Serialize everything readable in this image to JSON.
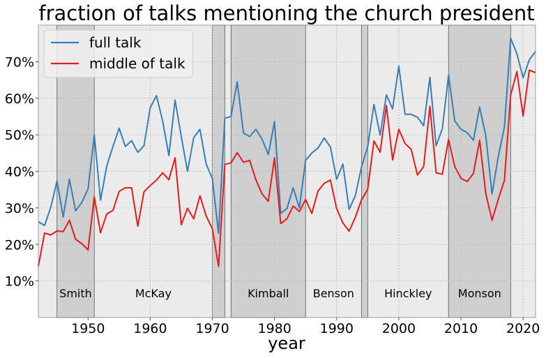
{
  "chart_data": {
    "type": "line",
    "title": "fraction of talks mentioning the church president",
    "xlabel": "year",
    "ylabel": "",
    "xlim": [
      1942,
      2022
    ],
    "ylim": [
      0,
      0.8
    ],
    "x_ticks": [
      1950,
      1960,
      1970,
      1980,
      1990,
      2000,
      2010,
      2020
    ],
    "y_ticks": [
      0.1,
      0.2,
      0.3,
      0.4,
      0.5,
      0.6,
      0.7
    ],
    "y_tick_labels": [
      "10%",
      "20%",
      "30%",
      "40%",
      "50%",
      "60%",
      "70%"
    ],
    "grid": true,
    "legend_position": "top-left",
    "background_colors": {
      "light": "#ebebeb",
      "shaded": "#cfcfcf"
    },
    "eras": [
      {
        "name": "Smith",
        "start": 1945,
        "end": 1951,
        "shaded": true
      },
      {
        "name": "McKay",
        "start": 1951,
        "end": 1970,
        "shaded": false
      },
      {
        "name": "",
        "start": 1970,
        "end": 1972,
        "shaded": true
      },
      {
        "name": "",
        "start": 1972,
        "end": 1973,
        "shaded": false
      },
      {
        "name": "Kimball",
        "start": 1973,
        "end": 1985,
        "shaded": true
      },
      {
        "name": "Benson",
        "start": 1985,
        "end": 1994,
        "shaded": false
      },
      {
        "name": "",
        "start": 1994,
        "end": 1995,
        "shaded": true
      },
      {
        "name": "Hinckley",
        "start": 1995,
        "end": 2008,
        "shaded": false
      },
      {
        "name": "Monson",
        "start": 2008,
        "end": 2018,
        "shaded": true
      },
      {
        "name": "",
        "start": 2018,
        "end": 2022,
        "shaded": false
      }
    ],
    "x": [
      1942,
      1943,
      1944,
      1945,
      1946,
      1947,
      1948,
      1949,
      1950,
      1951,
      1952,
      1953,
      1954,
      1955,
      1956,
      1957,
      1958,
      1959,
      1960,
      1961,
      1962,
      1963,
      1964,
      1965,
      1966,
      1967,
      1968,
      1969,
      1970,
      1971,
      1972,
      1973,
      1974,
      1975,
      1976,
      1977,
      1978,
      1979,
      1980,
      1981,
      1982,
      1983,
      1984,
      1985,
      1986,
      1987,
      1988,
      1989,
      1990,
      1991,
      1992,
      1993,
      1994,
      1995,
      1996,
      1997,
      1998,
      1999,
      2000,
      2001,
      2002,
      2003,
      2004,
      2005,
      2006,
      2007,
      2008,
      2009,
      2010,
      2011,
      2012,
      2013,
      2014,
      2015,
      2016,
      2017,
      2018,
      2019,
      2020,
      2021,
      2022
    ],
    "series": [
      {
        "name": "full talk",
        "color": "#377eb8",
        "values": [
          0.262,
          0.252,
          0.302,
          0.373,
          0.275,
          0.378,
          0.292,
          0.315,
          0.352,
          0.5,
          0.321,
          0.414,
          0.468,
          0.518,
          0.468,
          0.484,
          0.452,
          0.47,
          0.574,
          0.607,
          0.538,
          0.443,
          0.595,
          0.495,
          0.4,
          0.492,
          0.515,
          0.42,
          0.38,
          0.23,
          0.545,
          0.55,
          0.645,
          0.505,
          0.495,
          0.515,
          0.488,
          0.446,
          0.536,
          0.285,
          0.298,
          0.355,
          0.3,
          0.43,
          0.45,
          0.464,
          0.491,
          0.466,
          0.378,
          0.42,
          0.296,
          0.333,
          0.412,
          0.468,
          0.583,
          0.499,
          0.609,
          0.571,
          0.688,
          0.556,
          0.556,
          0.548,
          0.525,
          0.657,
          0.47,
          0.516,
          0.663,
          0.538,
          0.515,
          0.506,
          0.485,
          0.576,
          0.497,
          0.338,
          0.44,
          0.522,
          0.764,
          0.722,
          0.656,
          0.705,
          0.728
        ]
      },
      {
        "name": "middle of talk",
        "color": "#e41a1c",
        "values": [
          0.14,
          0.231,
          0.226,
          0.237,
          0.235,
          0.266,
          0.214,
          0.202,
          0.185,
          0.33,
          0.232,
          0.283,
          0.293,
          0.345,
          0.355,
          0.355,
          0.25,
          0.344,
          0.361,
          0.376,
          0.396,
          0.377,
          0.437,
          0.254,
          0.299,
          0.27,
          0.333,
          0.278,
          0.243,
          0.14,
          0.419,
          0.423,
          0.451,
          0.425,
          0.43,
          0.377,
          0.338,
          0.318,
          0.437,
          0.257,
          0.27,
          0.305,
          0.29,
          0.323,
          0.285,
          0.346,
          0.367,
          0.376,
          0.298,
          0.259,
          0.236,
          0.274,
          0.322,
          0.351,
          0.483,
          0.452,
          0.58,
          0.431,
          0.515,
          0.476,
          0.46,
          0.39,
          0.413,
          0.578,
          0.396,
          0.392,
          0.487,
          0.413,
          0.381,
          0.372,
          0.394,
          0.485,
          0.339,
          0.266,
          0.323,
          0.376,
          0.609,
          0.673,
          0.551,
          0.677,
          0.67
        ]
      }
    ]
  }
}
